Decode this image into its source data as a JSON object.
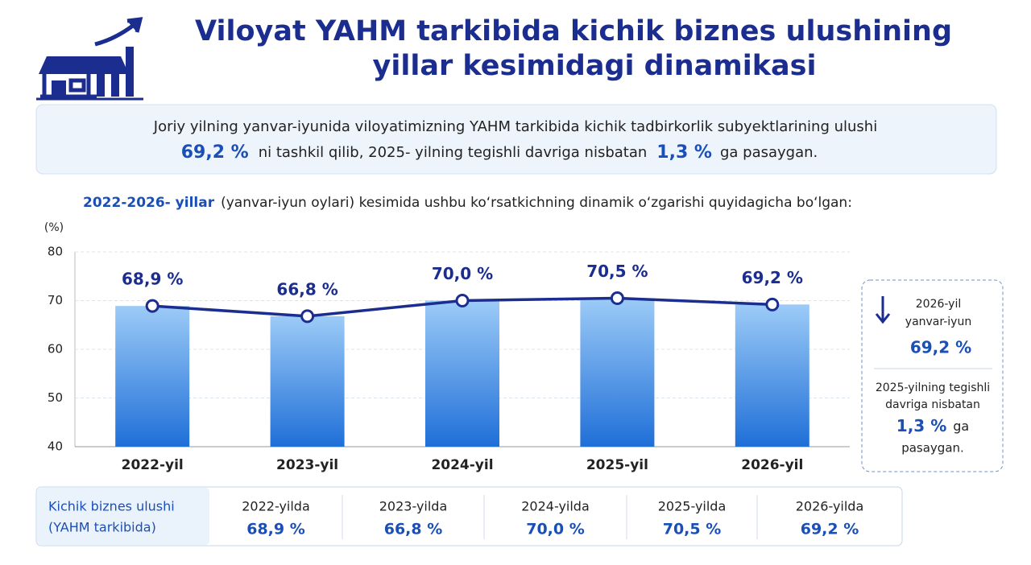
{
  "header": {
    "title_line1": "Viloyat YAHM tarkibida kichik biznes ulushining",
    "title_line2": "yillar kesimidagi dinamikasi"
  },
  "summary": {
    "line1": "Joriy yilning yanvar-iyunida viloyatimizning YAHM tarkibida kichik tadbirkorlik subyektlarining ulushi",
    "value1": "69,2 %",
    "text1": "ni tashkil qilib, 2025- yilning tegishli davriga nisbatan",
    "value2": "1,3 %",
    "text2": "ga pasaygan."
  },
  "subtitle": {
    "bold": "2022-2026- yillar",
    "rest": "(yanvar-iyun oylari) kesimida ushbu ko‘rsatkichning dinamik o‘zgarishi quyidagicha bo‘lgan:"
  },
  "chart_data": {
    "type": "bar",
    "y_unit": "(%)",
    "categories": [
      "2022-yil",
      "2023-yil",
      "2024-yil",
      "2025-yil",
      "2026-yil"
    ],
    "values": [
      68.9,
      66.8,
      70.0,
      70.5,
      69.2
    ],
    "value_labels": [
      "68,9 %",
      "66,8 %",
      "70,0 %",
      "70,5 %",
      "69,2 %"
    ],
    "color": "#2f7fe0",
    "line_color": "#1b2d8f",
    "ylim": [
      40,
      80
    ],
    "yticks": [
      40,
      50,
      60,
      70,
      80
    ],
    "grid": true
  },
  "side_panel": {
    "line1": "2026-yil",
    "line2": "yanvar-iyun",
    "value1": "69,2 %",
    "line3": "2025-yilning tegishli",
    "line4": "davriga nisbatan",
    "value2": "1,3 %",
    "line5": "ga",
    "line6": "pasaygan."
  },
  "table": {
    "label_line1": "Kichik biznes ulushi",
    "label_line2": "(YAHM tarkibida)",
    "columns": [
      {
        "year": "2022-yilda",
        "value": "68,9 %"
      },
      {
        "year": "2023-yilda",
        "value": "66,8 %"
      },
      {
        "year": "2024-yilda",
        "value": "70,0 %"
      },
      {
        "year": "2025-yilda",
        "value": "70,5 %"
      },
      {
        "year": "2026-yilda",
        "value": "69,2 %"
      }
    ]
  }
}
